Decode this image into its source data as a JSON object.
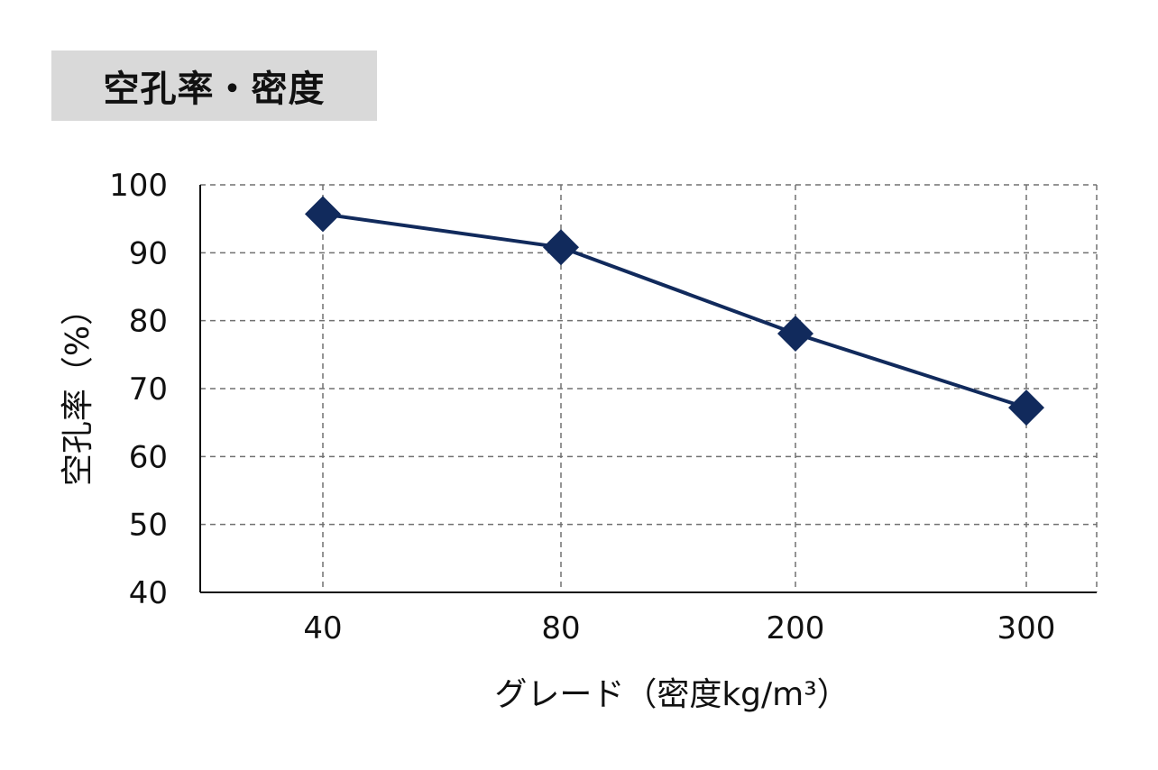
{
  "header": {
    "title": "空孔率・密度"
  },
  "chart_data": {
    "type": "line",
    "title": "",
    "categories": [
      "40",
      "80",
      "200",
      "300"
    ],
    "series": [
      {
        "values": [
          95.7,
          90.8,
          78.1,
          67.2
        ]
      }
    ],
    "xlabel": "グレード（密度kg/m³）",
    "ylabel": "空孔率（%）",
    "ylim": [
      40,
      100
    ],
    "yticks": [
      "40",
      "50",
      "60",
      "70",
      "80",
      "90",
      "100"
    ],
    "grid": "dashed",
    "marker": "diamond",
    "line_color": "#112a5c"
  }
}
